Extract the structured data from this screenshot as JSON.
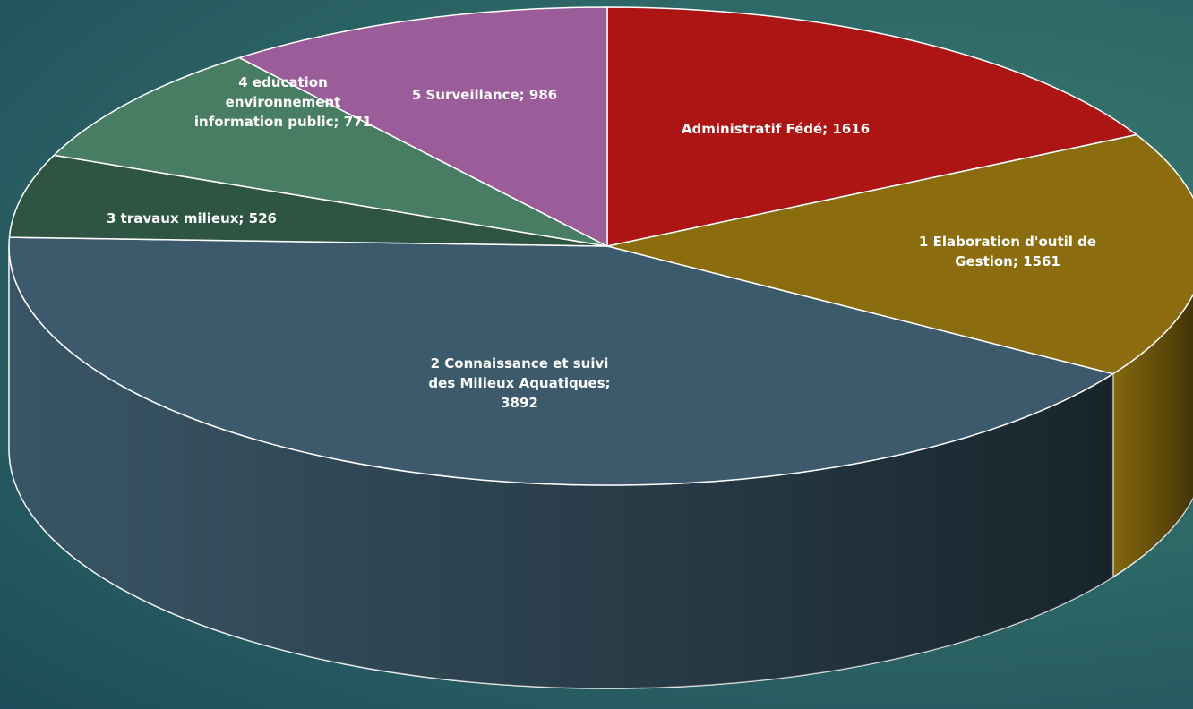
{
  "chart_data": {
    "type": "pie",
    "style": "3d-exploded-none",
    "slices": [
      {
        "label": "Administratif Fédé",
        "value": 1616,
        "color": "#ad1515",
        "label_lines": [
          "Administratif Fédé; 1616"
        ]
      },
      {
        "label": "1 Elaboration d'outil de Gestion",
        "value": 1561,
        "color": "#8b6c0f",
        "label_lines": [
          "1 Elaboration d'outil de",
          "Gestion; 1561"
        ]
      },
      {
        "label": "2 Connaissance et suivi des Milieux Aquatiques",
        "value": 3892,
        "color": "#3c5a6b",
        "label_lines": [
          "2 Connaissance et suivi",
          "des Milieux Aquatiques;",
          "3892"
        ]
      },
      {
        "label": "3 travaux milieux",
        "value": 526,
        "color": "#2e5443",
        "label_lines": [
          "3 travaux milieux; 526"
        ]
      },
      {
        "label": "4 education environnement information public",
        "value": 771,
        "color": "#487d64",
        "label_lines": [
          "4 education",
          "environnement",
          "information public; 771"
        ]
      },
      {
        "label": "5 Surveillance",
        "value": 986,
        "color": "#9b5c9a",
        "label_lines": [
          "5 Surveillance; 986"
        ]
      }
    ],
    "start_angle": "12 o'clock",
    "direction": "clockwise",
    "title": "",
    "legend": "none",
    "data_labels": "category; value"
  }
}
